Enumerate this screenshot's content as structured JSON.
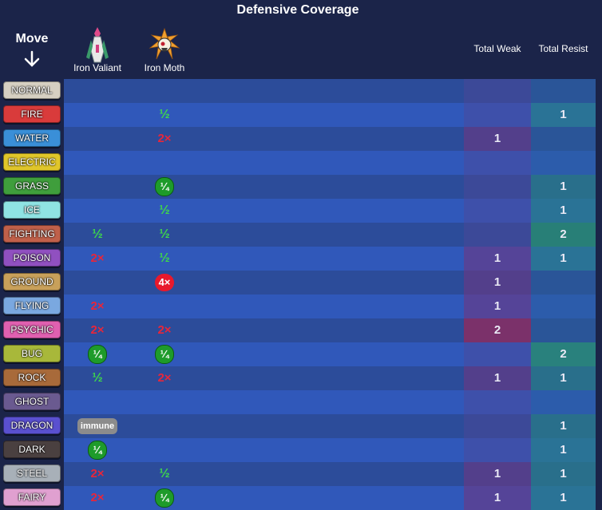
{
  "title": "Defensive Coverage",
  "move_header": "Move",
  "pokemon": [
    {
      "name": "Iron Valiant",
      "icon": "iron-valiant-sprite"
    },
    {
      "name": "Iron Moth",
      "icon": "iron-moth-sprite"
    }
  ],
  "totals_headers": {
    "weak": "Total Weak",
    "resist": "Total Resist"
  },
  "colors": {
    "half": "#3ed84a",
    "double": "#e8263a",
    "quarter_badge": "#1e9b2a",
    "quad_badge": "#e8192c",
    "immune_badge": "#8c8c8c"
  },
  "rows": [
    {
      "type": "NORMAL",
      "color": "#d6d0c2",
      "text_dark": true,
      "iv": "",
      "im": "",
      "weak": "",
      "resist": ""
    },
    {
      "type": "FIRE",
      "color": "#d93b3b",
      "iv": "",
      "im": "½",
      "weak": "",
      "resist": "1"
    },
    {
      "type": "WATER",
      "color": "#3a8fd8",
      "iv": "",
      "im": "2×",
      "weak": "1",
      "resist": ""
    },
    {
      "type": "ELECTRIC",
      "color": "#e0c62a",
      "iv": "",
      "im": "",
      "weak": "",
      "resist": ""
    },
    {
      "type": "GRASS",
      "color": "#3f9e3c",
      "iv": "",
      "im": "¼",
      "weak": "",
      "resist": "1"
    },
    {
      "type": "ICE",
      "color": "#8fe3e3",
      "iv": "",
      "im": "½",
      "weak": "",
      "resist": "1"
    },
    {
      "type": "FIGHTING",
      "color": "#c0604a",
      "iv": "½",
      "im": "½",
      "weak": "",
      "resist": "2"
    },
    {
      "type": "POISON",
      "color": "#9050c0",
      "iv": "2×",
      "im": "½",
      "weak": "1",
      "resist": "1"
    },
    {
      "type": "GROUND",
      "color": "#c8a05a",
      "iv": "",
      "im": "4×",
      "weak": "1",
      "resist": ""
    },
    {
      "type": "FLYING",
      "color": "#7aa8e0",
      "iv": "2×",
      "im": "",
      "weak": "1",
      "resist": ""
    },
    {
      "type": "PSYCHIC",
      "color": "#e060b0",
      "iv": "2×",
      "im": "2×",
      "weak": "2",
      "resist": ""
    },
    {
      "type": "BUG",
      "color": "#a8b83a",
      "iv": "¼",
      "im": "¼",
      "weak": "",
      "resist": "2"
    },
    {
      "type": "ROCK",
      "color": "#a86a3a",
      "iv": "½",
      "im": "2×",
      "weak": "1",
      "resist": "1"
    },
    {
      "type": "GHOST",
      "color": "#6a5a90",
      "iv": "",
      "im": "",
      "weak": "",
      "resist": ""
    },
    {
      "type": "DRAGON",
      "color": "#5a50d0",
      "iv": "immune",
      "im": "",
      "weak": "",
      "resist": "1"
    },
    {
      "type": "DARK",
      "color": "#4a4040",
      "iv": "¼",
      "im": "",
      "weak": "",
      "resist": "1"
    },
    {
      "type": "STEEL",
      "color": "#a8b0b8",
      "iv": "2×",
      "im": "½",
      "weak": "1",
      "resist": "1"
    },
    {
      "type": "FAIRY",
      "color": "#e0a0d0",
      "iv": "2×",
      "im": "¼",
      "weak": "1",
      "resist": "1"
    }
  ]
}
